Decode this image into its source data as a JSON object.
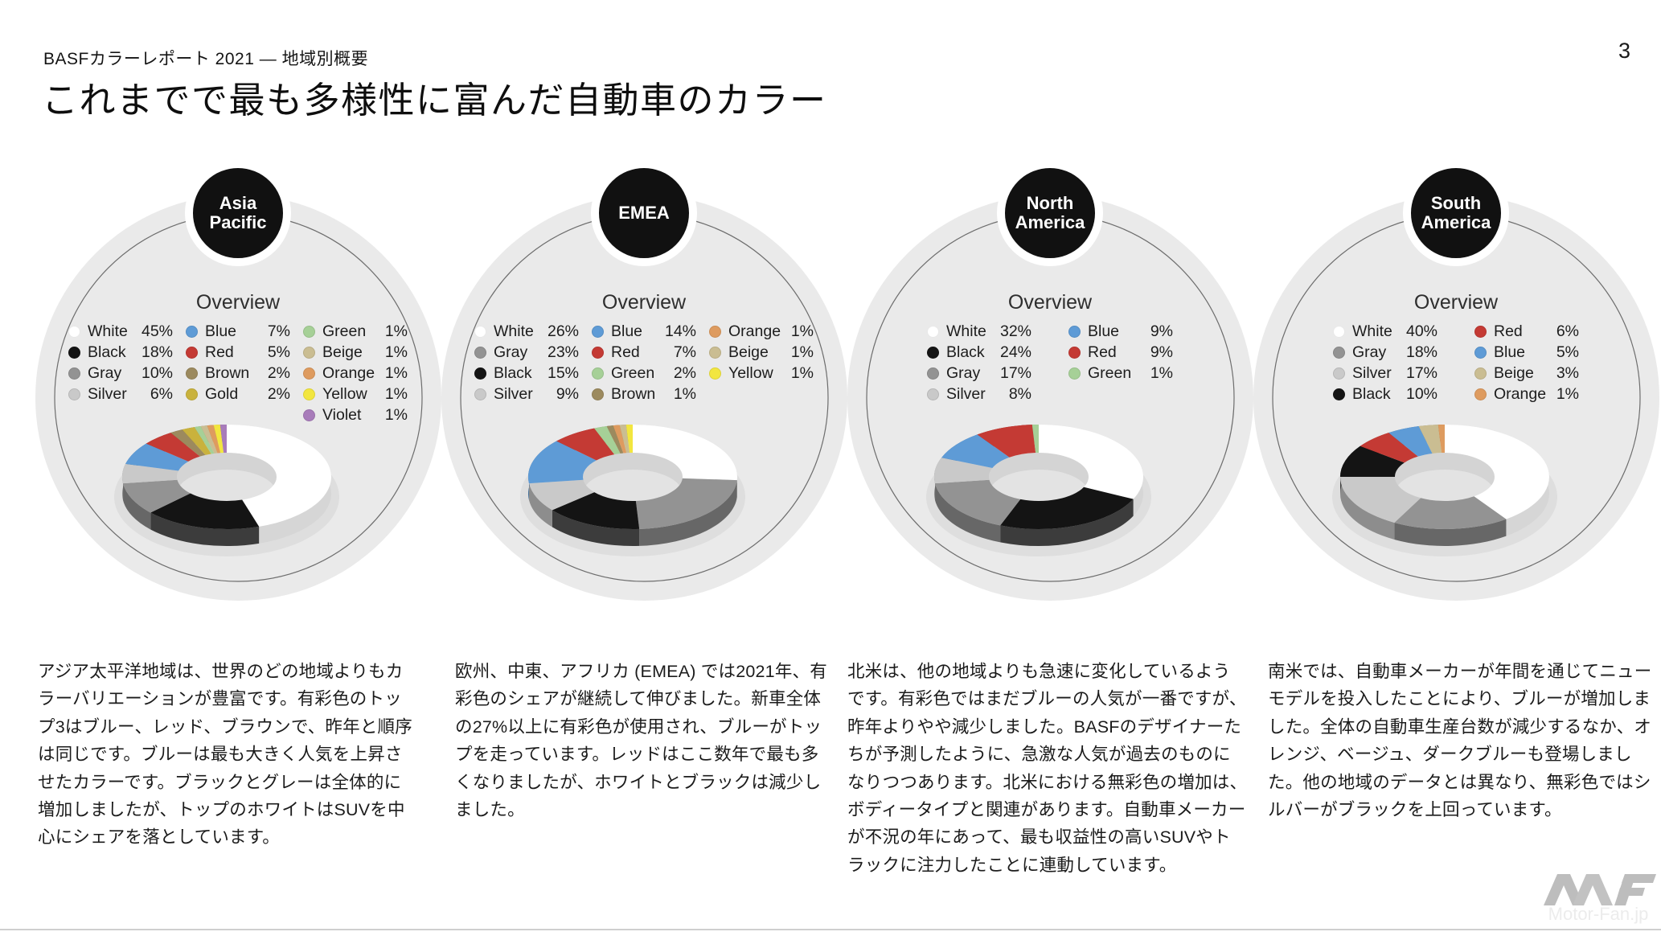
{
  "header": {
    "report_label": "BASFカラーレポート 2021 — 地域別概要",
    "title": "これまでで最も多様性に富んだ自動車のカラー",
    "page_number": "3"
  },
  "overview_label": "Overview",
  "color_map": {
    "White": "#ffffff",
    "Black": "#141414",
    "Gray": "#939393",
    "Silver": "#c9c9c9",
    "Blue": "#5e9bd6",
    "Red": "#c43a34",
    "Brown": "#9c8a5e",
    "Gold": "#c9b23d",
    "Green": "#a6d097",
    "Beige": "#cabd92",
    "Orange": "#de9b5f",
    "Yellow": "#f2e63f",
    "Violet": "#a87cba"
  },
  "chart_data": [
    {
      "type": "pie",
      "region": "Asia Pacific",
      "title": "Overview",
      "categories": [
        "White",
        "Black",
        "Gray",
        "Silver",
        "Blue",
        "Red",
        "Brown",
        "Gold",
        "Green",
        "Beige",
        "Orange",
        "Yellow",
        "Violet"
      ],
      "values": [
        45,
        18,
        10,
        6,
        7,
        5,
        2,
        2,
        1,
        1,
        1,
        1,
        1
      ],
      "legend_layout": [
        4,
        4,
        5
      ],
      "description": "アジア太平洋地域は、世界のどの地域よりもカラーバリエーションが豊富です。有彩色のトップ3はブルー、レッド、ブラウンで、昨年と順序は同じです。ブルーは最も大きく人気を上昇させたカラーです。ブラックとグレーは全体的に増加しましたが、トップのホワイトはSUVを中心にシェアを落としています。"
    },
    {
      "type": "pie",
      "region": "EMEA",
      "title": "Overview",
      "categories": [
        "White",
        "Gray",
        "Black",
        "Silver",
        "Blue",
        "Red",
        "Green",
        "Brown",
        "Orange",
        "Beige",
        "Yellow"
      ],
      "values": [
        26,
        23,
        15,
        9,
        14,
        7,
        2,
        1,
        1,
        1,
        1
      ],
      "legend_layout": [
        4,
        4,
        3
      ],
      "description": "欧州、中東、アフリカ (EMEA) では2021年、有彩色のシェアが継続して伸びました。新車全体の27%以上に有彩色が使用され、ブルーがトップを走っています。レッドはここ数年で最も多くなりましたが、ホワイトとブラックは減少しました。"
    },
    {
      "type": "pie",
      "region": "North America",
      "title": "Overview",
      "categories": [
        "White",
        "Black",
        "Gray",
        "Silver",
        "Blue",
        "Red",
        "Green"
      ],
      "values": [
        32,
        24,
        17,
        8,
        9,
        9,
        1
      ],
      "legend_layout": [
        4,
        3
      ],
      "description": "北米は、他の地域よりも急速に変化しているようです。有彩色ではまだブルーの人気が一番ですが、昨年よりやや減少しました。BASFのデザイナーたちが予測したように、急激な人気が過去のものになりつつあります。北米における無彩色の増加は、ボディータイプと関連があります。自動車メーカーが不況の年にあって、最も収益性の高いSUVやトラックに注力したことに連動しています。"
    },
    {
      "type": "pie",
      "region": "South America",
      "title": "Overview",
      "categories": [
        "White",
        "Gray",
        "Silver",
        "Black",
        "Red",
        "Blue",
        "Beige",
        "Orange"
      ],
      "values": [
        40,
        18,
        17,
        10,
        6,
        5,
        3,
        1
      ],
      "legend_layout": [
        4,
        4
      ],
      "description": "南米では、自動車メーカーが年間を通じてニューモデルを投入したことにより、ブルーが増加しました。全体の自動車生産台数が減少するなか、オレンジ、ベージュ、ダークブルーも登場しました。他の地域のデータとは異なり、無彩色ではシルバーがブラックを上回っています。"
    }
  ],
  "footer": {
    "watermark": "Motor-Fan.jp"
  }
}
